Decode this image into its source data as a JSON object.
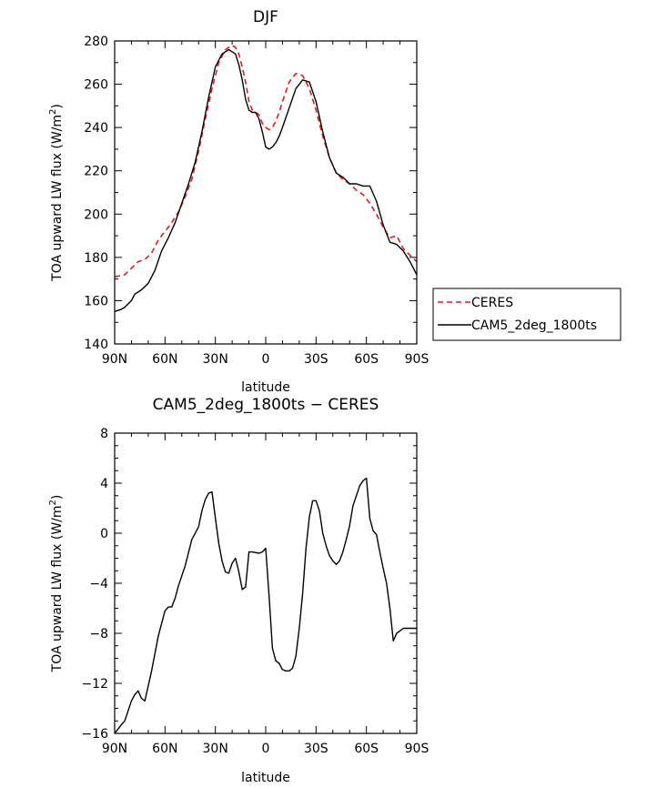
{
  "chart_data": [
    {
      "type": "line",
      "title": "DJF",
      "xlabel": "latitude",
      "ylabel": "TOA upward LW flux (W/m²)",
      "ylabel_main": "TOA upward LW flux (W/m",
      "ylabel_exp": "2",
      "ylabel_close": ")",
      "xlim": [
        90,
        -90
      ],
      "ylim": [
        140,
        280
      ],
      "xticks": [
        90,
        60,
        30,
        0,
        -30,
        -60,
        -90
      ],
      "xtick_labels": [
        "90N",
        "60N",
        "30N",
        "0",
        "30S",
        "60S",
        "90S"
      ],
      "yticks": [
        140,
        160,
        180,
        200,
        220,
        240,
        260,
        280
      ],
      "ytick_labels": [
        "140",
        "160",
        "180",
        "200",
        "220",
        "240",
        "260",
        "280"
      ],
      "legend_position": "right",
      "series": [
        {
          "name": "CERES",
          "color": "#e41a1c",
          "dash": "dashed",
          "x": [
            90,
            84,
            80,
            76,
            72,
            68,
            64,
            60,
            56,
            52,
            48,
            44,
            40,
            36,
            32,
            28,
            24,
            20,
            18,
            16,
            14,
            12,
            10,
            8,
            6,
            4,
            2,
            0,
            -2,
            -4,
            -6,
            -8,
            -10,
            -14,
            -18,
            -22,
            -26,
            -30,
            -34,
            -38,
            -42,
            -46,
            -50,
            -54,
            -58,
            -62,
            -66,
            -70,
            -74,
            -78,
            -82,
            -86,
            -90
          ],
          "values": [
            171,
            172,
            175,
            178,
            179,
            182,
            188,
            192,
            196,
            201,
            208,
            216,
            229,
            244,
            258,
            270,
            276,
            278,
            277,
            274,
            268,
            261,
            252,
            248,
            247,
            246,
            242,
            240,
            239,
            240,
            243,
            247,
            252,
            261,
            265,
            264,
            258,
            248,
            236,
            226,
            219,
            216,
            214,
            211,
            209,
            205,
            200,
            194,
            189,
            190,
            184,
            181,
            178
          ]
        },
        {
          "name": "CAM5_2deg_1800ts",
          "color": "#000000",
          "dash": "solid",
          "x": [
            90,
            86,
            84,
            80,
            78,
            74,
            70,
            66,
            62,
            58,
            54,
            50,
            46,
            42,
            38,
            34,
            30,
            26,
            22,
            18,
            16,
            14,
            12,
            10,
            8,
            6,
            4,
            2,
            0,
            -2,
            -4,
            -6,
            -8,
            -10,
            -14,
            -18,
            -22,
            -26,
            -30,
            -34,
            -38,
            -42,
            -46,
            -50,
            -54,
            -58,
            -62,
            -66,
            -70,
            -74,
            -78,
            -82,
            -86,
            -90
          ],
          "values": [
            155,
            156,
            157,
            160,
            163,
            165,
            168,
            174,
            183,
            189,
            196,
            205,
            214,
            224,
            238,
            254,
            268,
            274,
            276,
            274,
            269,
            262,
            253,
            248,
            247,
            247,
            244,
            238,
            231,
            230,
            231,
            233,
            236,
            240,
            249,
            258,
            262,
            261,
            252,
            238,
            226,
            219,
            217,
            214,
            214,
            213,
            213,
            206,
            195,
            187,
            186,
            183,
            178,
            172
          ]
        }
      ]
    },
    {
      "type": "line",
      "title": "CAM5_2deg_1800ts − CERES",
      "xlabel": "latitude",
      "ylabel": "TOA upward LW flux (W/m²)",
      "ylabel_main": "TOA upward LW flux (W/m",
      "ylabel_exp": "2",
      "ylabel_close": ")",
      "xlim": [
        90,
        -90
      ],
      "ylim": [
        -16,
        8
      ],
      "xticks": [
        90,
        60,
        30,
        0,
        -30,
        -60,
        -90
      ],
      "xtick_labels": [
        "90N",
        "60N",
        "30N",
        "0",
        "30S",
        "60S",
        "90S"
      ],
      "yticks": [
        -16,
        -12,
        -8,
        -4,
        0,
        4,
        8
      ],
      "ytick_labels": [
        "−16",
        "−12",
        "−8",
        "−4",
        "0",
        "4",
        "8"
      ],
      "series": [
        {
          "name": "",
          "color": "#000000",
          "dash": "solid",
          "x": [
            90,
            86,
            84,
            80,
            78,
            76,
            74,
            72,
            68,
            64,
            60,
            58,
            56,
            54,
            52,
            48,
            44,
            40,
            38,
            36,
            34,
            32,
            30,
            28,
            26,
            24,
            22,
            20,
            18,
            16,
            14,
            12,
            10,
            8,
            4,
            2,
            0,
            -2,
            -4,
            -6,
            -8,
            -10,
            -12,
            -14,
            -16,
            -18,
            -20,
            -22,
            -24,
            -26,
            -28,
            -30,
            -32,
            -34,
            -36,
            -38,
            -40,
            -42,
            -44,
            -46,
            -48,
            -50,
            -52,
            -54,
            -56,
            -58,
            -60,
            -62,
            -64,
            -66,
            -68,
            -70,
            -72,
            -74,
            -76,
            -78,
            -80,
            -82,
            -84,
            -86,
            -88,
            -90
          ],
          "values": [
            -16,
            -15.3,
            -15,
            -13.4,
            -12.9,
            -12.6,
            -13.2,
            -13.4,
            -11,
            -8.2,
            -6.2,
            -5.9,
            -5.9,
            -5.2,
            -4.2,
            -2.6,
            -0.5,
            0.5,
            1.8,
            2.7,
            3.2,
            3.3,
            1.2,
            -0.8,
            -2.2,
            -3.1,
            -3.2,
            -2.4,
            -2.0,
            -3.1,
            -4.5,
            -4.3,
            -1.5,
            -1.5,
            -1.6,
            -1.5,
            -1.2,
            -5.0,
            -9.2,
            -10.2,
            -10.4,
            -10.9,
            -11.0,
            -11.0,
            -10.8,
            -9.8,
            -7.6,
            -4.8,
            -1.2,
            1.3,
            2.6,
            2.6,
            1.8,
            0.0,
            -1.0,
            -1.8,
            -2.2,
            -2.5,
            -2.2,
            -1.5,
            -0.5,
            0.6,
            2.2,
            3.0,
            3.8,
            4.2,
            4.4,
            1.2,
            0.2,
            -0.1,
            -1.5,
            -2.8,
            -4.0,
            -6.0,
            -8.6,
            -8.0,
            -7.8,
            -7.6,
            -7.6,
            -7.6,
            -7.6,
            -7.6
          ]
        }
      ]
    }
  ]
}
